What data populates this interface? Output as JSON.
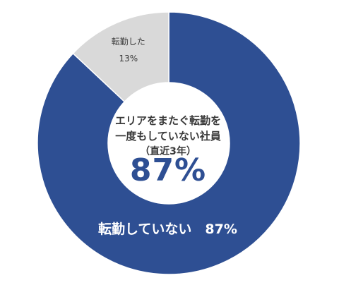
{
  "chart_data": {
    "type": "pie",
    "style": "donut",
    "slices": [
      {
        "label": "転勤していない",
        "value": 87,
        "value_text": "87%",
        "color": "#2e4f93"
      },
      {
        "label": "転勤した",
        "value": 13,
        "value_text": "13%",
        "color": "#d9d9d9"
      }
    ],
    "center_text": {
      "line1": "エリアをまたぐ転勤を",
      "line2": "一度もしていない社員",
      "line3": "（直近3年）",
      "value": "87%"
    },
    "start_angle_deg": 0,
    "direction": "clockwise"
  }
}
